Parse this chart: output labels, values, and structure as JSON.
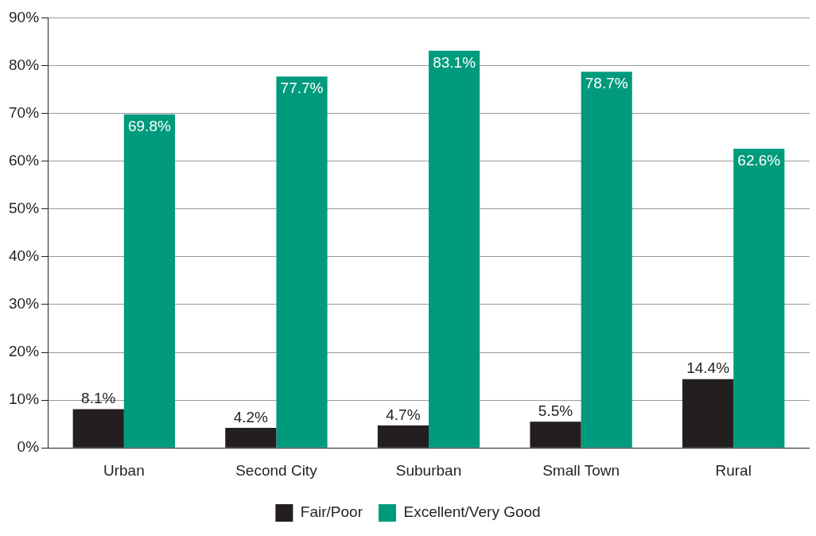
{
  "chart_data": {
    "type": "bar",
    "categories": [
      "Urban",
      "Second City",
      "Suburban",
      "Small Town",
      "Rural"
    ],
    "series": [
      {
        "name": "Fair/Poor",
        "color": "#231f20",
        "values": [
          8.1,
          4.2,
          4.7,
          5.5,
          14.4
        ],
        "value_labels": [
          "8.1%",
          "4.2%",
          "4.7%",
          "5.5%",
          "14.4%"
        ]
      },
      {
        "name": "Excellent/Very Good",
        "color": "#009b7d",
        "values": [
          69.8,
          77.7,
          83.1,
          78.7,
          62.6
        ],
        "value_labels": [
          "69.8%",
          "77.7%",
          "83.1%",
          "78.7%",
          "62.6%"
        ]
      }
    ],
    "ylim": [
      0,
      90
    ],
    "yticks": [
      {
        "value": 0,
        "label": "0%"
      },
      {
        "value": 10,
        "label": "10%"
      },
      {
        "value": 20,
        "label": "20%"
      },
      {
        "value": 30,
        "label": "30%"
      },
      {
        "value": 40,
        "label": "40%"
      },
      {
        "value": 50,
        "label": "50%"
      },
      {
        "value": 60,
        "label": "60%"
      },
      {
        "value": 70,
        "label": "70%"
      },
      {
        "value": 80,
        "label": "80%"
      },
      {
        "value": 90,
        "label": "90%"
      }
    ],
    "grid": "y",
    "legend": "bottom"
  }
}
